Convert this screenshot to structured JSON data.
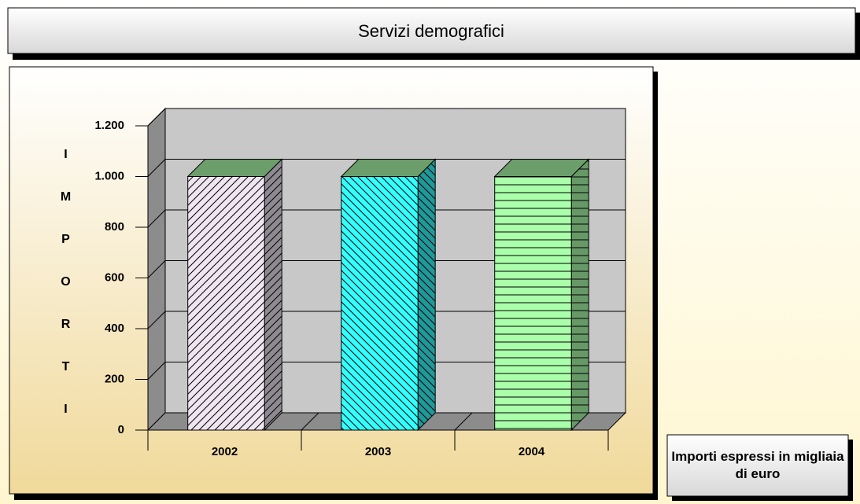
{
  "chart_data": {
    "type": "bar",
    "title": "Servizi demografici",
    "y_label": "IMPORTI",
    "categories": [
      "2002",
      "2003",
      "2004"
    ],
    "values": [
      1000,
      1000,
      1000
    ],
    "colors": [
      "#efe6f2",
      "#33ffff",
      "#aaffaa"
    ],
    "hatch": [
      "diagonal",
      "backdiagonal",
      "horizontal"
    ],
    "top_color": "#6b9e6b",
    "ylim": [
      0,
      1200
    ],
    "yticks": [
      0,
      200,
      400,
      600,
      800,
      {
        "value": 1000,
        "label": "1.000"
      },
      {
        "value": 1200,
        "label": "1.200"
      }
    ],
    "grid": true,
    "note": "Importi espressi in migliaia di euro"
  }
}
